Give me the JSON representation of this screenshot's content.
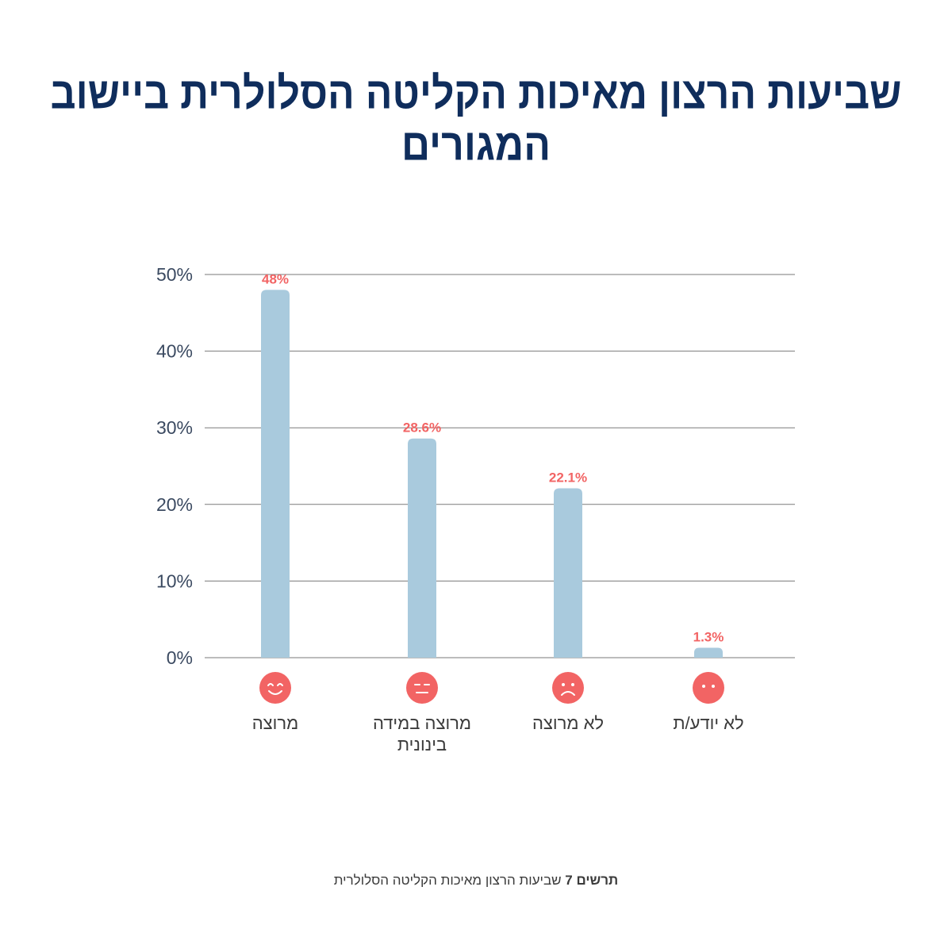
{
  "title": "שביעות הרצון מאיכות הקליטה הסלולרית ביישוב המגורים",
  "caption": {
    "prefix": "תרשים 7",
    "text": "שביעות הרצון מאיכות הקליטה הסלולרית"
  },
  "colors": {
    "bar": "#a9cadd",
    "value_label": "#f26464",
    "face": "#f26464",
    "title": "#0f2d5c",
    "grid": "#7a7a7a"
  },
  "chart_data": {
    "type": "bar",
    "categories": [
      "מרוצה",
      "מרוצה במידה בינונית",
      "לא מרוצה",
      "לא יודע/ת"
    ],
    "category_lines": [
      [
        "מרוצה"
      ],
      [
        "מרוצה במידה",
        "בינונית"
      ],
      [
        "לא מרוצה"
      ],
      [
        "לא יודע/ת"
      ]
    ],
    "category_icons": [
      "smiling-face-icon",
      "neutral-face-icon",
      "sad-face-icon",
      "blank-face-icon"
    ],
    "values": [
      48,
      28.6,
      22.1,
      1.3
    ],
    "value_labels": [
      "48%",
      "28.6%",
      "22.1%",
      "1.3%"
    ],
    "yticks": [
      0,
      10,
      20,
      30,
      40,
      50
    ],
    "ytick_labels": [
      "0%",
      "10%",
      "20%",
      "30%",
      "40%",
      "50%"
    ],
    "ylim": [
      0,
      50
    ],
    "grid": true
  }
}
